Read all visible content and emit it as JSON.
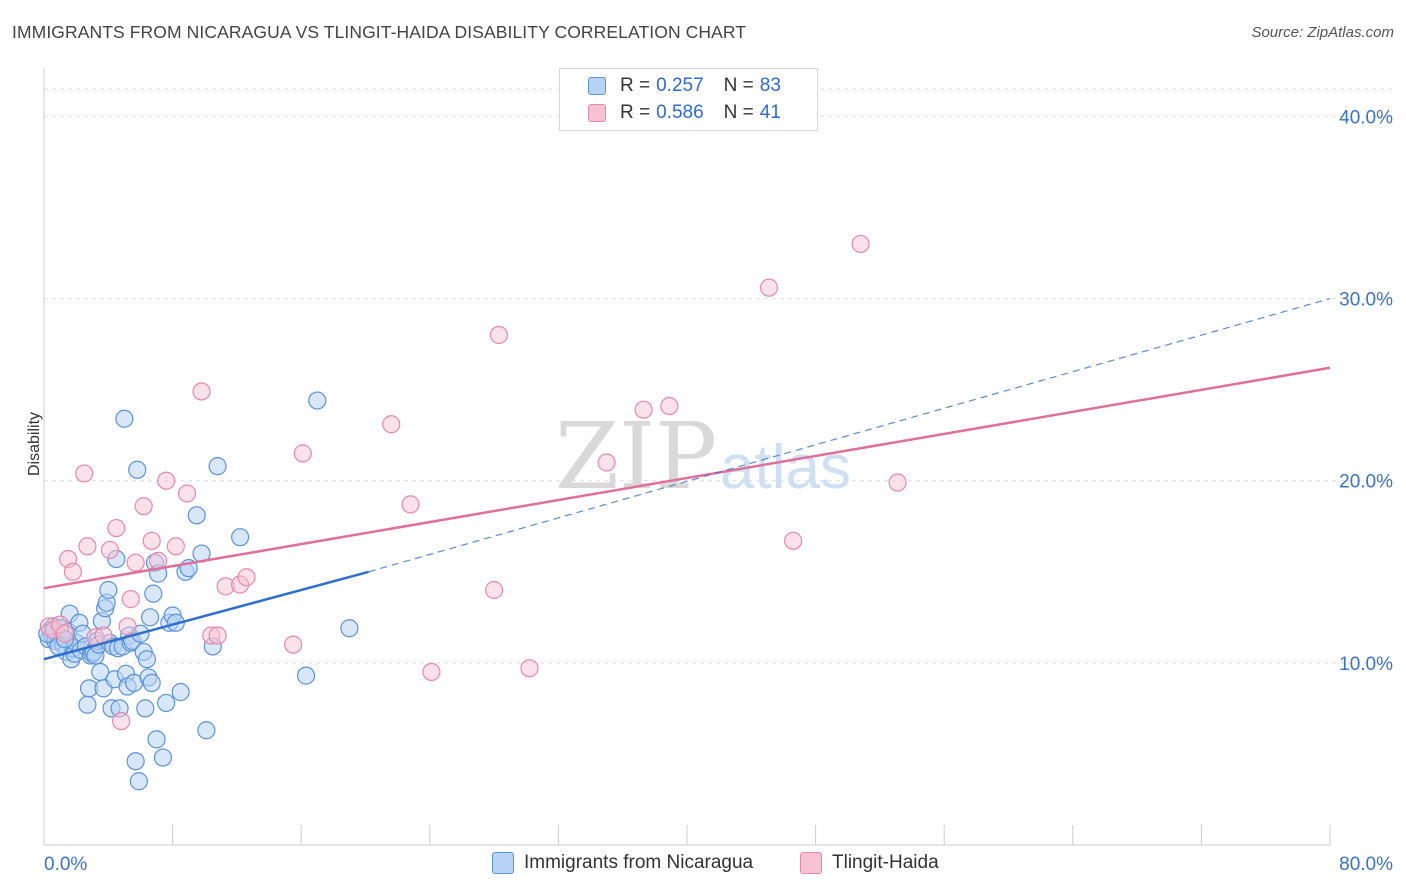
{
  "header": {
    "title": "IMMIGRANTS FROM NICARAGUA VS TLINGIT-HAIDA DISABILITY CORRELATION CHART",
    "source": "Source: ZipAtlas.com"
  },
  "watermark": {
    "zip": "ZIP",
    "atlas": "atlas"
  },
  "legend": {
    "r_label": "R =",
    "n_label": "N =",
    "rows": [
      {
        "r": "0.257",
        "n": "83"
      },
      {
        "r": "0.586",
        "n": "41"
      }
    ]
  },
  "colors": {
    "blue_fill": "#b8d3f5",
    "blue_stroke": "#5b93d9",
    "blue_line": "#2f6fce",
    "pink_fill": "#f7c3d4",
    "pink_stroke": "#e889a8",
    "pink_line": "#e0709a",
    "axis_text": "#3a74c9",
    "grid": "#dddddd"
  },
  "chart_data": {
    "type": "scatter",
    "title": "IMMIGRANTS FROM NICARAGUA VS TLINGIT-HAIDA DISABILITY CORRELATION CHART",
    "xlabel": "",
    "ylabel": "Disability",
    "xlim": [
      0,
      80
    ],
    "ylim": [
      0,
      42
    ],
    "x_tick_labels": [
      "0.0%",
      "80.0%"
    ],
    "y_ticks": [
      10,
      20,
      30,
      40
    ],
    "y_tick_labels": [
      "10.0%",
      "20.0%",
      "30.0%",
      "40.0%"
    ],
    "grid": true,
    "legend_position": "top-center",
    "series": [
      {
        "name": "Immigrants from Nicaragua",
        "r": 0.257,
        "n": 83,
        "trend": {
          "x": [
            0,
            20.2
          ],
          "y": [
            10.2,
            15.0
          ]
        },
        "trend_dashed": {
          "x": [
            20.2,
            80
          ],
          "y": [
            15.0,
            30.0
          ]
        },
        "points": [
          [
            0.3,
            11.3
          ],
          [
            0.4,
            11.8
          ],
          [
            0.5,
            11.5
          ],
          [
            0.6,
            12.0
          ],
          [
            0.7,
            11.2
          ],
          [
            0.8,
            11.6
          ],
          [
            1.0,
            11.9
          ],
          [
            1.1,
            11.4
          ],
          [
            1.2,
            11.0
          ],
          [
            1.4,
            10.6
          ],
          [
            1.5,
            11.7
          ],
          [
            1.6,
            12.7
          ],
          [
            1.7,
            10.2
          ],
          [
            1.8,
            10.8
          ],
          [
            1.9,
            10.5
          ],
          [
            2.0,
            11.1
          ],
          [
            2.2,
            12.2
          ],
          [
            2.3,
            10.7
          ],
          [
            2.4,
            11.6
          ],
          [
            2.6,
            10.9
          ],
          [
            2.7,
            7.7
          ],
          [
            2.8,
            8.6
          ],
          [
            2.9,
            10.4
          ],
          [
            3.0,
            10.5
          ],
          [
            3.1,
            10.6
          ],
          [
            3.2,
            10.4
          ],
          [
            3.3,
            11.2
          ],
          [
            3.4,
            11.0
          ],
          [
            3.5,
            9.5
          ],
          [
            3.6,
            12.3
          ],
          [
            3.7,
            8.6
          ],
          [
            3.8,
            13.0
          ],
          [
            3.9,
            13.3
          ],
          [
            4.0,
            14.0
          ],
          [
            4.1,
            11.1
          ],
          [
            4.2,
            7.5
          ],
          [
            4.3,
            10.9
          ],
          [
            4.4,
            9.1
          ],
          [
            4.5,
            15.7
          ],
          [
            4.6,
            10.8
          ],
          [
            4.7,
            7.5
          ],
          [
            4.9,
            10.9
          ],
          [
            5.0,
            23.4
          ],
          [
            5.1,
            9.4
          ],
          [
            5.2,
            8.7
          ],
          [
            5.3,
            11.5
          ],
          [
            5.4,
            11.1
          ],
          [
            5.5,
            11.2
          ],
          [
            5.6,
            8.9
          ],
          [
            5.7,
            4.6
          ],
          [
            5.8,
            20.6
          ],
          [
            5.9,
            3.5
          ],
          [
            6.0,
            11.6
          ],
          [
            6.2,
            10.6
          ],
          [
            6.3,
            7.5
          ],
          [
            6.4,
            10.2
          ],
          [
            6.5,
            9.2
          ],
          [
            6.6,
            12.5
          ],
          [
            6.7,
            8.9
          ],
          [
            6.8,
            13.8
          ],
          [
            6.9,
            15.5
          ],
          [
            7.0,
            5.8
          ],
          [
            7.1,
            14.9
          ],
          [
            7.4,
            4.8
          ],
          [
            7.6,
            7.8
          ],
          [
            7.8,
            12.2
          ],
          [
            8.0,
            12.6
          ],
          [
            8.2,
            12.2
          ],
          [
            8.5,
            8.4
          ],
          [
            8.8,
            15.0
          ],
          [
            9.0,
            15.2
          ],
          [
            9.5,
            18.1
          ],
          [
            9.8,
            16.0
          ],
          [
            10.1,
            6.3
          ],
          [
            10.5,
            10.9
          ],
          [
            10.8,
            20.8
          ],
          [
            12.2,
            16.9
          ],
          [
            16.3,
            9.3
          ],
          [
            17.0,
            24.4
          ],
          [
            19.0,
            11.9
          ],
          [
            0.2,
            11.6
          ],
          [
            0.9,
            10.9
          ],
          [
            1.3,
            11.3
          ]
        ]
      },
      {
        "name": "Tlingit-Haida",
        "r": 0.586,
        "n": 41,
        "trend": {
          "x": [
            0,
            80
          ],
          "y": [
            14.1,
            26.2
          ]
        },
        "points": [
          [
            0.3,
            12.0
          ],
          [
            0.6,
            11.8
          ],
          [
            1.0,
            12.1
          ],
          [
            1.3,
            11.6
          ],
          [
            1.5,
            15.7
          ],
          [
            1.8,
            15.0
          ],
          [
            2.5,
            20.4
          ],
          [
            2.7,
            16.4
          ],
          [
            3.2,
            11.4
          ],
          [
            3.7,
            11.5
          ],
          [
            4.1,
            16.2
          ],
          [
            4.5,
            17.4
          ],
          [
            4.8,
            6.8
          ],
          [
            5.2,
            12.0
          ],
          [
            5.4,
            13.5
          ],
          [
            5.7,
            15.5
          ],
          [
            6.2,
            18.6
          ],
          [
            6.7,
            16.7
          ],
          [
            7.1,
            15.6
          ],
          [
            7.6,
            20.0
          ],
          [
            8.2,
            16.4
          ],
          [
            8.9,
            19.3
          ],
          [
            9.8,
            24.9
          ],
          [
            10.4,
            11.5
          ],
          [
            10.8,
            11.5
          ],
          [
            11.3,
            14.2
          ],
          [
            12.2,
            14.3
          ],
          [
            12.6,
            14.7
          ],
          [
            15.5,
            11.0
          ],
          [
            16.1,
            21.5
          ],
          [
            21.6,
            23.1
          ],
          [
            22.8,
            18.7
          ],
          [
            24.1,
            9.5
          ],
          [
            28.0,
            14.0
          ],
          [
            28.3,
            28.0
          ],
          [
            30.2,
            9.7
          ],
          [
            35.0,
            21.0
          ],
          [
            37.3,
            23.9
          ],
          [
            38.9,
            24.1
          ],
          [
            45.1,
            30.6
          ],
          [
            46.6,
            16.7
          ]
        ],
        "extra_points": [
          [
            50.8,
            33.0
          ],
          [
            53.1,
            19.9
          ]
        ]
      }
    ]
  }
}
